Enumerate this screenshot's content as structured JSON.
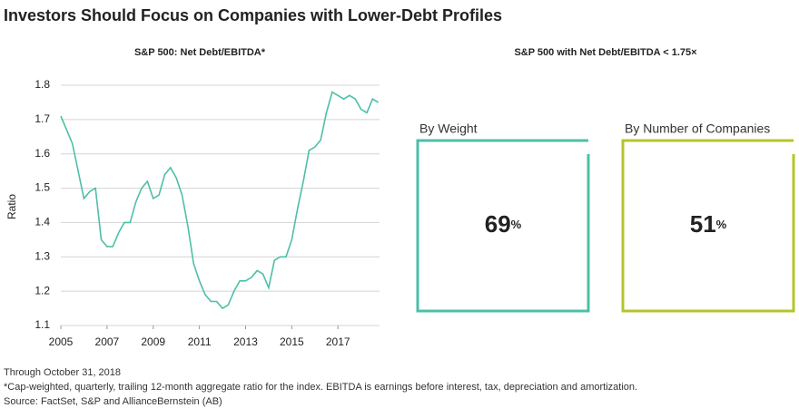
{
  "title": "Investors Should Focus on Companies with Lower-Debt Profiles",
  "chart_data": {
    "type": "line",
    "title": "S&P 500: Net Debt/EBITDA*",
    "y_label": "Ratio",
    "x": [
      2005,
      2005.25,
      2005.5,
      2005.75,
      2006,
      2006.25,
      2006.5,
      2006.75,
      2007,
      2007.25,
      2007.5,
      2007.75,
      2008,
      2008.25,
      2008.5,
      2008.75,
      2009,
      2009.25,
      2009.5,
      2009.75,
      2010,
      2010.25,
      2010.5,
      2010.75,
      2011,
      2011.25,
      2011.5,
      2011.75,
      2012,
      2012.25,
      2012.5,
      2012.75,
      2013,
      2013.25,
      2013.5,
      2013.75,
      2014,
      2014.25,
      2014.5,
      2014.75,
      2015,
      2015.25,
      2015.5,
      2015.75,
      2016,
      2016.25,
      2016.5,
      2016.75,
      2017,
      2017.25,
      2017.5,
      2017.75,
      2018,
      2018.25,
      2018.5,
      2018.75
    ],
    "series": [
      {
        "name": "Net Debt/EBITDA",
        "color": "#4dbfa8",
        "values": [
          1.71,
          1.67,
          1.63,
          1.55,
          1.47,
          1.49,
          1.5,
          1.35,
          1.33,
          1.33,
          1.37,
          1.4,
          1.4,
          1.46,
          1.5,
          1.52,
          1.47,
          1.48,
          1.54,
          1.56,
          1.53,
          1.48,
          1.39,
          1.28,
          1.23,
          1.19,
          1.17,
          1.17,
          1.15,
          1.16,
          1.2,
          1.23,
          1.23,
          1.24,
          1.26,
          1.25,
          1.21,
          1.29,
          1.3,
          1.3,
          1.35,
          1.44,
          1.52,
          1.61,
          1.62,
          1.64,
          1.72,
          1.78,
          1.77,
          1.76,
          1.77,
          1.76,
          1.73,
          1.72,
          1.76,
          1.75
        ]
      }
    ],
    "xlim": [
      2005,
      2018.8
    ],
    "xticks": [
      2005,
      2007,
      2009,
      2011,
      2013,
      2015,
      2017
    ],
    "ylim": [
      1.1,
      1.8
    ],
    "yticks": [
      1.1,
      1.2,
      1.3,
      1.4,
      1.5,
      1.6,
      1.7,
      1.8
    ],
    "grid": true
  },
  "stats": {
    "title": "S&P 500 with Net Debt/EBITDA < 1.75×",
    "boxes": [
      {
        "label": "By Weight",
        "value": 69,
        "unit": "%",
        "color": "#4dbfa8"
      },
      {
        "label": "By Number of Companies",
        "value": 51,
        "unit": "%",
        "color": "#b5c42a"
      }
    ]
  },
  "footnotes": [
    "Through October 31, 2018",
    "*Cap-weighted, quarterly, trailing 12-month aggregate ratio for the index. EBITDA is earnings before interest, tax, depreciation and amortization.",
    "Source: FactSet, S&P and AllianceBernstein (AB)"
  ]
}
